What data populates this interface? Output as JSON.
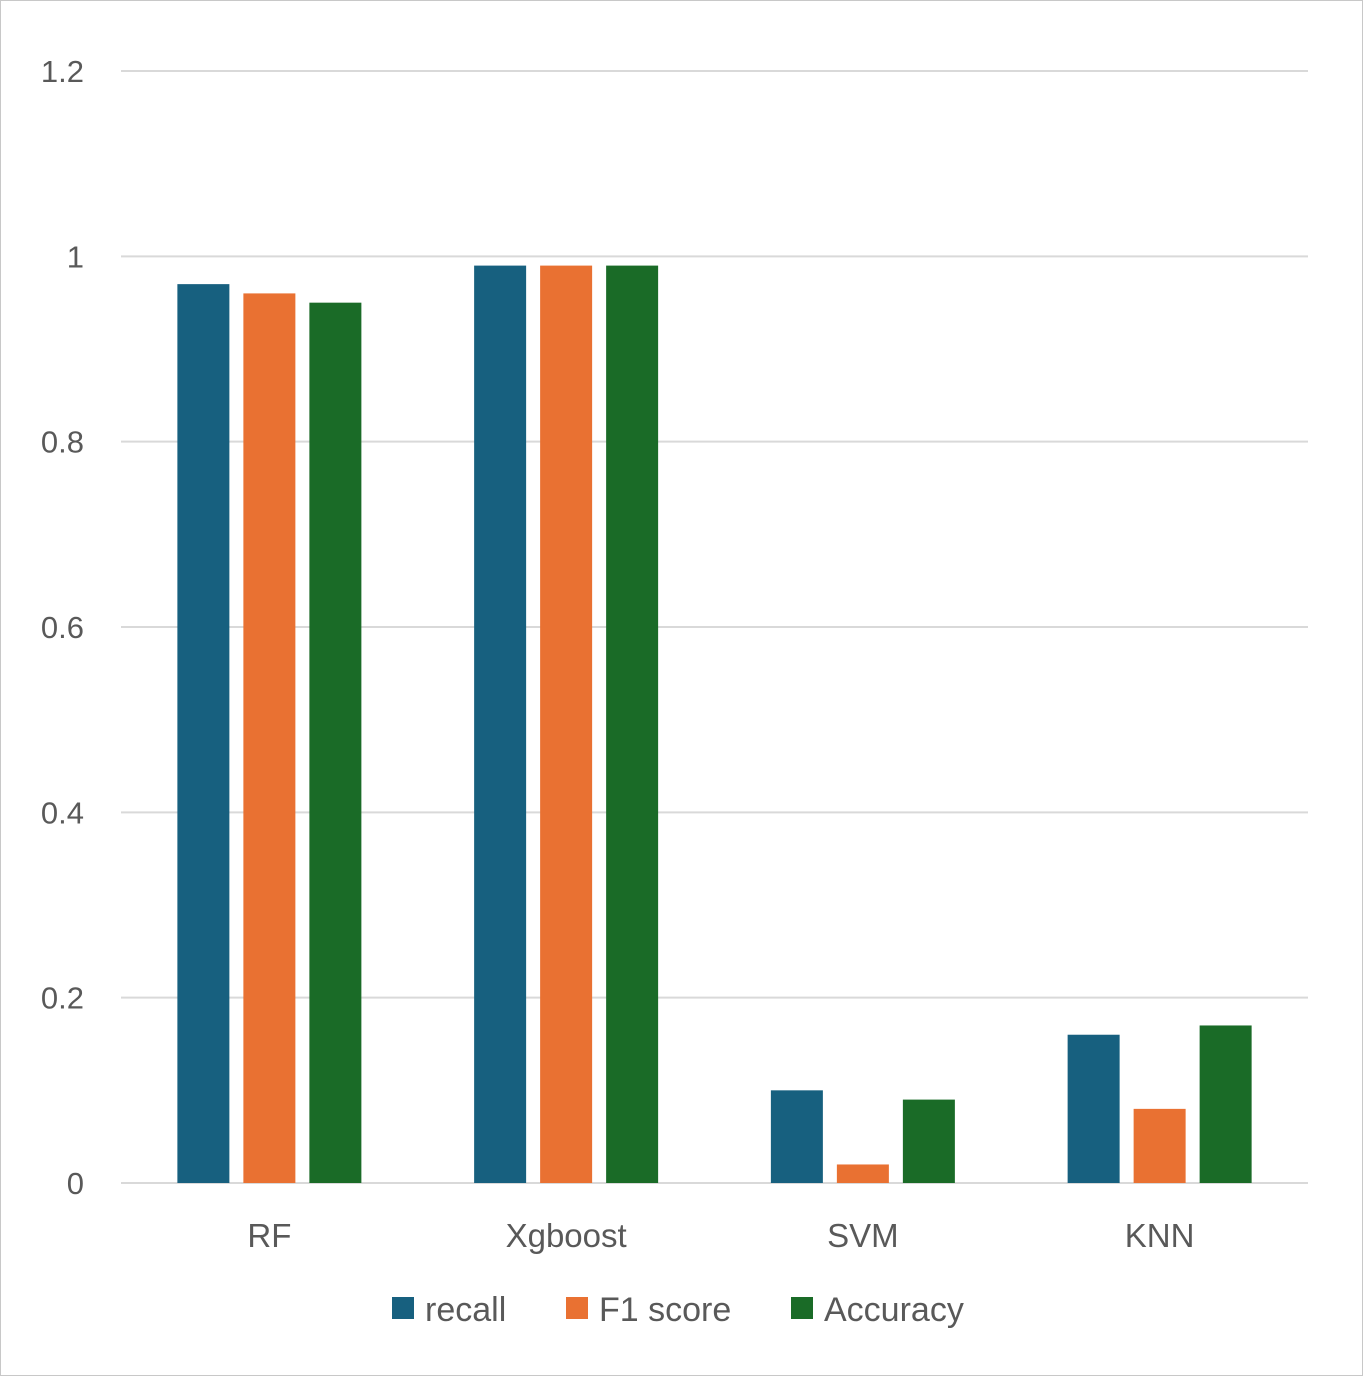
{
  "chart_data": {
    "type": "bar",
    "categories": [
      "RF",
      "Xgboost",
      "SVM",
      "KNN"
    ],
    "series": [
      {
        "name": "recall",
        "color": "#17607f",
        "values": [
          0.97,
          0.99,
          0.1,
          0.16
        ]
      },
      {
        "name": "F1 score",
        "color": "#e97132",
        "values": [
          0.96,
          0.99,
          0.02,
          0.08
        ]
      },
      {
        "name": "Accuracy",
        "color": "#1a6b27",
        "values": [
          0.95,
          0.99,
          0.09,
          0.17
        ]
      }
    ],
    "yticks": [
      "0",
      "0.2",
      "0.4",
      "0.6",
      "0.8",
      "1",
      "1.2"
    ],
    "ylim": [
      0,
      1.2
    ],
    "grid": true,
    "legend": "bottom"
  }
}
